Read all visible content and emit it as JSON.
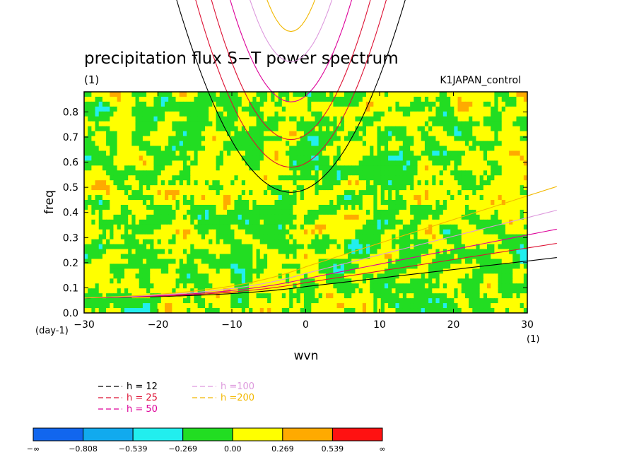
{
  "chart_data": {
    "type": "heatmap",
    "title": "precipitation flux S−T power spectrum",
    "unit_label": "(1)",
    "experiment": "K1JAPAN_control",
    "xlabel": "wvn",
    "ylabel": "freq",
    "x_unit": "(1)",
    "y_unit": "(day-1)",
    "xlim": [
      -30,
      30
    ],
    "ylim": [
      0,
      0.88
    ],
    "x_ticks": [
      -30,
      -20,
      -10,
      0,
      10,
      20,
      30
    ],
    "x_tick_labels": [
      "−30",
      "−20",
      "−10",
      "0",
      "10",
      "20",
      "30"
    ],
    "y_ticks": [
      0,
      0.1,
      0.2,
      0.3,
      0.4,
      0.5,
      0.6,
      0.7,
      0.8
    ],
    "y_tick_labels": [
      "0.0",
      "0.1",
      "0.2",
      "0.3",
      "0.4",
      "0.5",
      "0.6",
      "0.7",
      "0.8"
    ],
    "field_note": "log10 power anomaly; values mostly between -0.269 and 0.269 (green/yellow) with scattered blue and orange/red patches",
    "dispersion_curves": [
      {
        "name": "h = 12",
        "color": "#000000"
      },
      {
        "name": "h = 25",
        "color": "#dd1133"
      },
      {
        "name": "h = 50",
        "color": "#dd0099"
      },
      {
        "name": "h =100",
        "color": "#dd99dd"
      },
      {
        "name": "h =200",
        "color": "#f2b800"
      }
    ],
    "colorbar": {
      "labels": [
        "−∞",
        "−0.808",
        "−0.539",
        "−0.269",
        "0.00",
        "0.269",
        "0.539",
        "∞"
      ],
      "colors": [
        "#1166ee",
        "#11aaee",
        "#22eeee",
        "#22dd22",
        "#ffff00",
        "#ffaa00",
        "#ff1111"
      ]
    }
  }
}
